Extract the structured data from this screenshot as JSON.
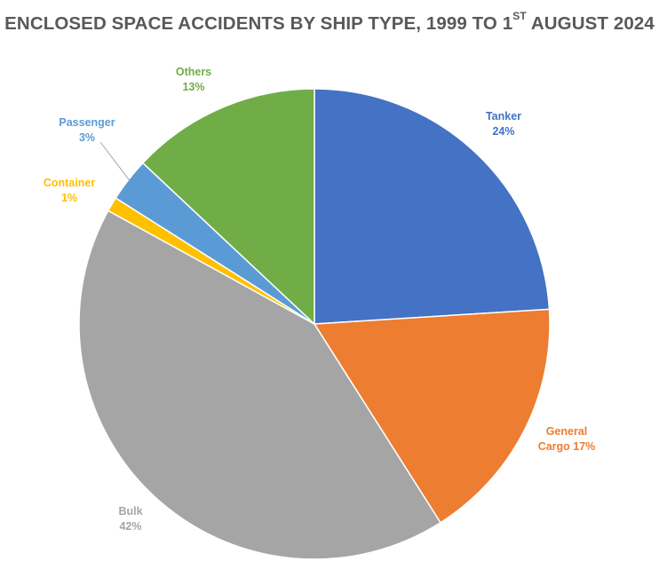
{
  "chart_data": {
    "type": "pie",
    "title": {
      "main": "ENCLOSED SPACE ACCIDENTS BY SHIP TYPE, 1999 TO 1",
      "superscript": "ST",
      "suffix": " AUGUST 2024"
    },
    "slices": [
      {
        "name": "Tanker",
        "value": 24,
        "percent_label": "24%",
        "color": "#4472C4",
        "label_lines": [
          "Tanker",
          "24%"
        ]
      },
      {
        "name": "General Cargo",
        "value": 17,
        "percent_label": "17%",
        "color": "#ED7D31",
        "label_lines": [
          "General",
          "Cargo 17%"
        ]
      },
      {
        "name": "Bulk",
        "value": 42,
        "percent_label": "42%",
        "color": "#A5A5A5",
        "label_lines": [
          "Bulk",
          "42%"
        ]
      },
      {
        "name": "Container",
        "value": 1,
        "percent_label": "1%",
        "color": "#FFC000",
        "label_lines": [
          "Container",
          "1%"
        ]
      },
      {
        "name": "Passenger",
        "value": 3,
        "percent_label": "3%",
        "color": "#5B9BD5",
        "label_lines": [
          "Passenger",
          "3%"
        ]
      },
      {
        "name": "Others",
        "value": 13,
        "percent_label": "13%",
        "color": "#70AD47",
        "label_lines": [
          "Others",
          "13%"
        ]
      }
    ]
  }
}
